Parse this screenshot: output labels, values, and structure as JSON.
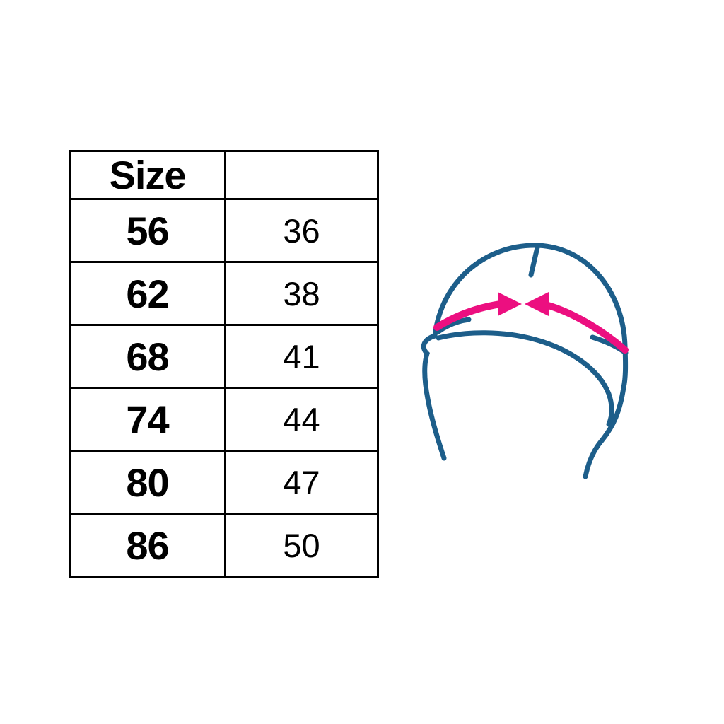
{
  "page": {
    "background": "#ffffff"
  },
  "size_table": {
    "header": {
      "col1": "Size",
      "col2": ""
    },
    "rows": [
      {
        "size": "56",
        "value": "36"
      },
      {
        "size": "62",
        "value": "38"
      },
      {
        "size": "68",
        "value": "41"
      },
      {
        "size": "74",
        "value": "44"
      },
      {
        "size": "80",
        "value": "47"
      },
      {
        "size": "86",
        "value": "50"
      }
    ]
  },
  "chart_data": {
    "type": "table",
    "title": "",
    "columns": [
      "Size",
      ""
    ],
    "rows": [
      [
        "56",
        "36"
      ],
      [
        "62",
        "38"
      ],
      [
        "68",
        "41"
      ],
      [
        "74",
        "44"
      ],
      [
        "80",
        "47"
      ],
      [
        "86",
        "50"
      ]
    ]
  },
  "illustration": {
    "name": "baby-hat-circumference-diagram",
    "outline_color": "#1d5e8a",
    "arrow_color": "#ec0f80"
  }
}
